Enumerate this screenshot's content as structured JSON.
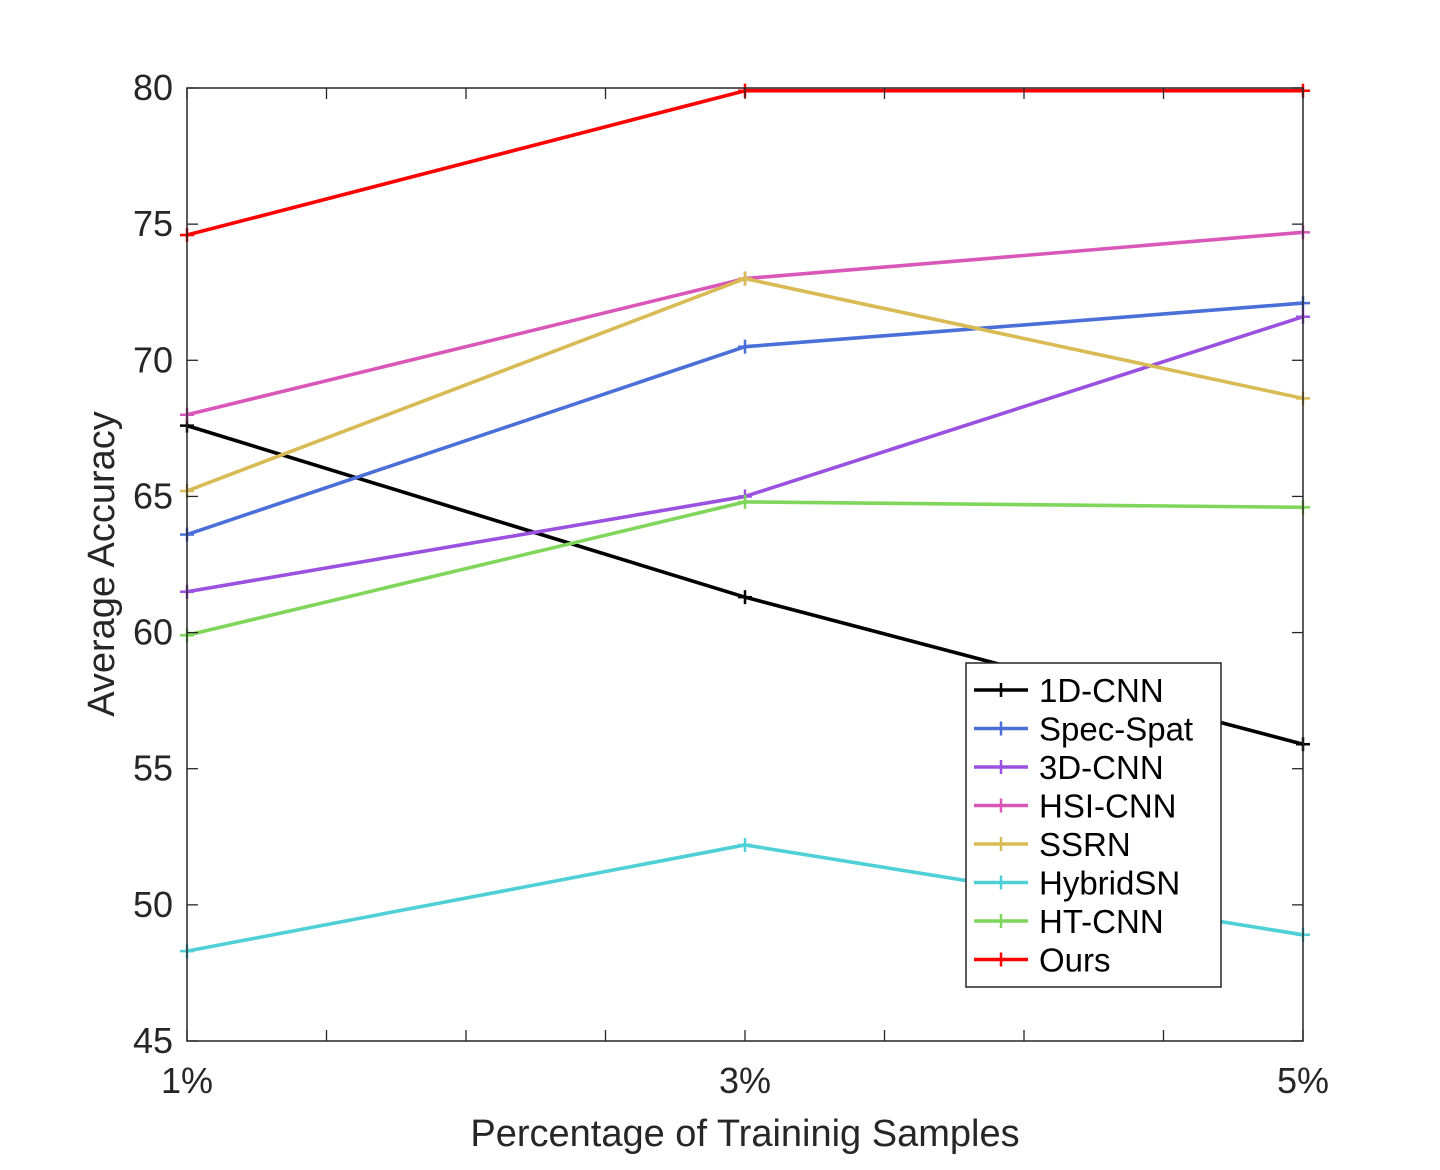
{
  "chart_data": {
    "type": "line",
    "title": "",
    "xlabel": "Percentage of Traininig Samples",
    "ylabel": "Average Accuracy",
    "categories": [
      "1%",
      "3%",
      "5%"
    ],
    "x": [
      1,
      3,
      5
    ],
    "xlim": [
      1,
      5
    ],
    "ylim": [
      45,
      80
    ],
    "yticks": [
      45,
      50,
      55,
      60,
      65,
      70,
      75,
      80
    ],
    "grid": false,
    "legend_position": "bottom-right",
    "series": [
      {
        "name": "1D-CNN",
        "color": "#000000",
        "values": [
          67.6,
          61.3,
          55.9
        ]
      },
      {
        "name": "Spec-Spat",
        "color": "#4a6fd8",
        "values": [
          63.6,
          70.5,
          72.1
        ]
      },
      {
        "name": "3D-CNN",
        "color": "#9b51e0",
        "values": [
          61.5,
          65.0,
          71.6
        ]
      },
      {
        "name": "HSI-CNN",
        "color": "#d957b9",
        "values": [
          68.0,
          73.0,
          74.7
        ]
      },
      {
        "name": "SSRN",
        "color": "#d9bb55",
        "values": [
          65.2,
          73.0,
          68.6
        ]
      },
      {
        "name": "HybridSN",
        "color": "#4fd0d6",
        "values": [
          48.3,
          52.2,
          48.9
        ]
      },
      {
        "name": "HT-CNN",
        "color": "#7fd65a",
        "values": [
          59.9,
          64.8,
          64.6
        ]
      },
      {
        "name": "Ours",
        "color": "#ff0000",
        "values": [
          74.6,
          79.9,
          79.9
        ]
      }
    ]
  }
}
